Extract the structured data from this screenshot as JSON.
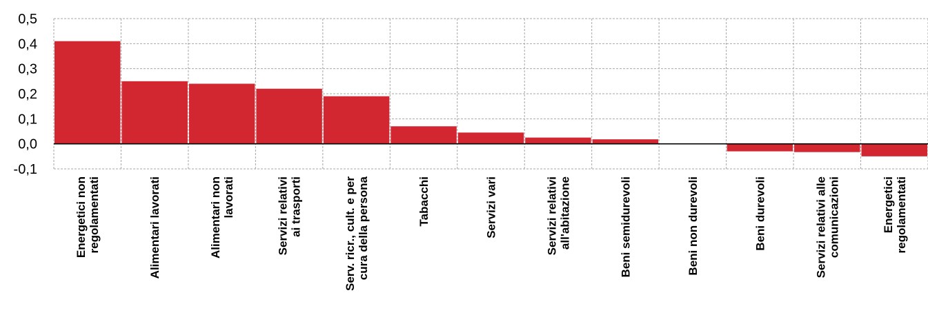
{
  "chart_data": {
    "type": "bar",
    "categories": [
      [
        "Energetici non",
        "regolamentati"
      ],
      [
        "Alimentari lavorati"
      ],
      [
        "Alimentari non",
        "lavorati"
      ],
      [
        "Servizi relativi",
        "ai trasporti"
      ],
      [
        "Serv. ricr., cult. e per",
        "cura della persona"
      ],
      [
        "Tabacchi"
      ],
      [
        "Servizi vari"
      ],
      [
        "Servizi relativi",
        "all'abitazione"
      ],
      [
        "Beni semidurevoli"
      ],
      [
        "Beni non durevoli"
      ],
      [
        "Beni durevoli"
      ],
      [
        "Servizi relativi alle",
        "comunicazioni"
      ],
      [
        "Energetici",
        "regolamentati"
      ]
    ],
    "values": [
      0.41,
      0.25,
      0.24,
      0.22,
      0.19,
      0.07,
      0.045,
      0.025,
      0.018,
      0.0,
      -0.03,
      -0.033,
      -0.05
    ],
    "ylim": [
      -0.1,
      0.5
    ],
    "yticks": [
      "0,5",
      "0,4",
      "0,3",
      "0,2",
      "0,1",
      "0,0",
      "-0,1"
    ],
    "ytick_values": [
      0.5,
      0.4,
      0.3,
      0.2,
      0.1,
      0.0,
      -0.1
    ],
    "grid": true,
    "bar_color": "#d22630",
    "grid_color": "#a6a6a6",
    "title": "",
    "xlabel": "",
    "ylabel": ""
  }
}
